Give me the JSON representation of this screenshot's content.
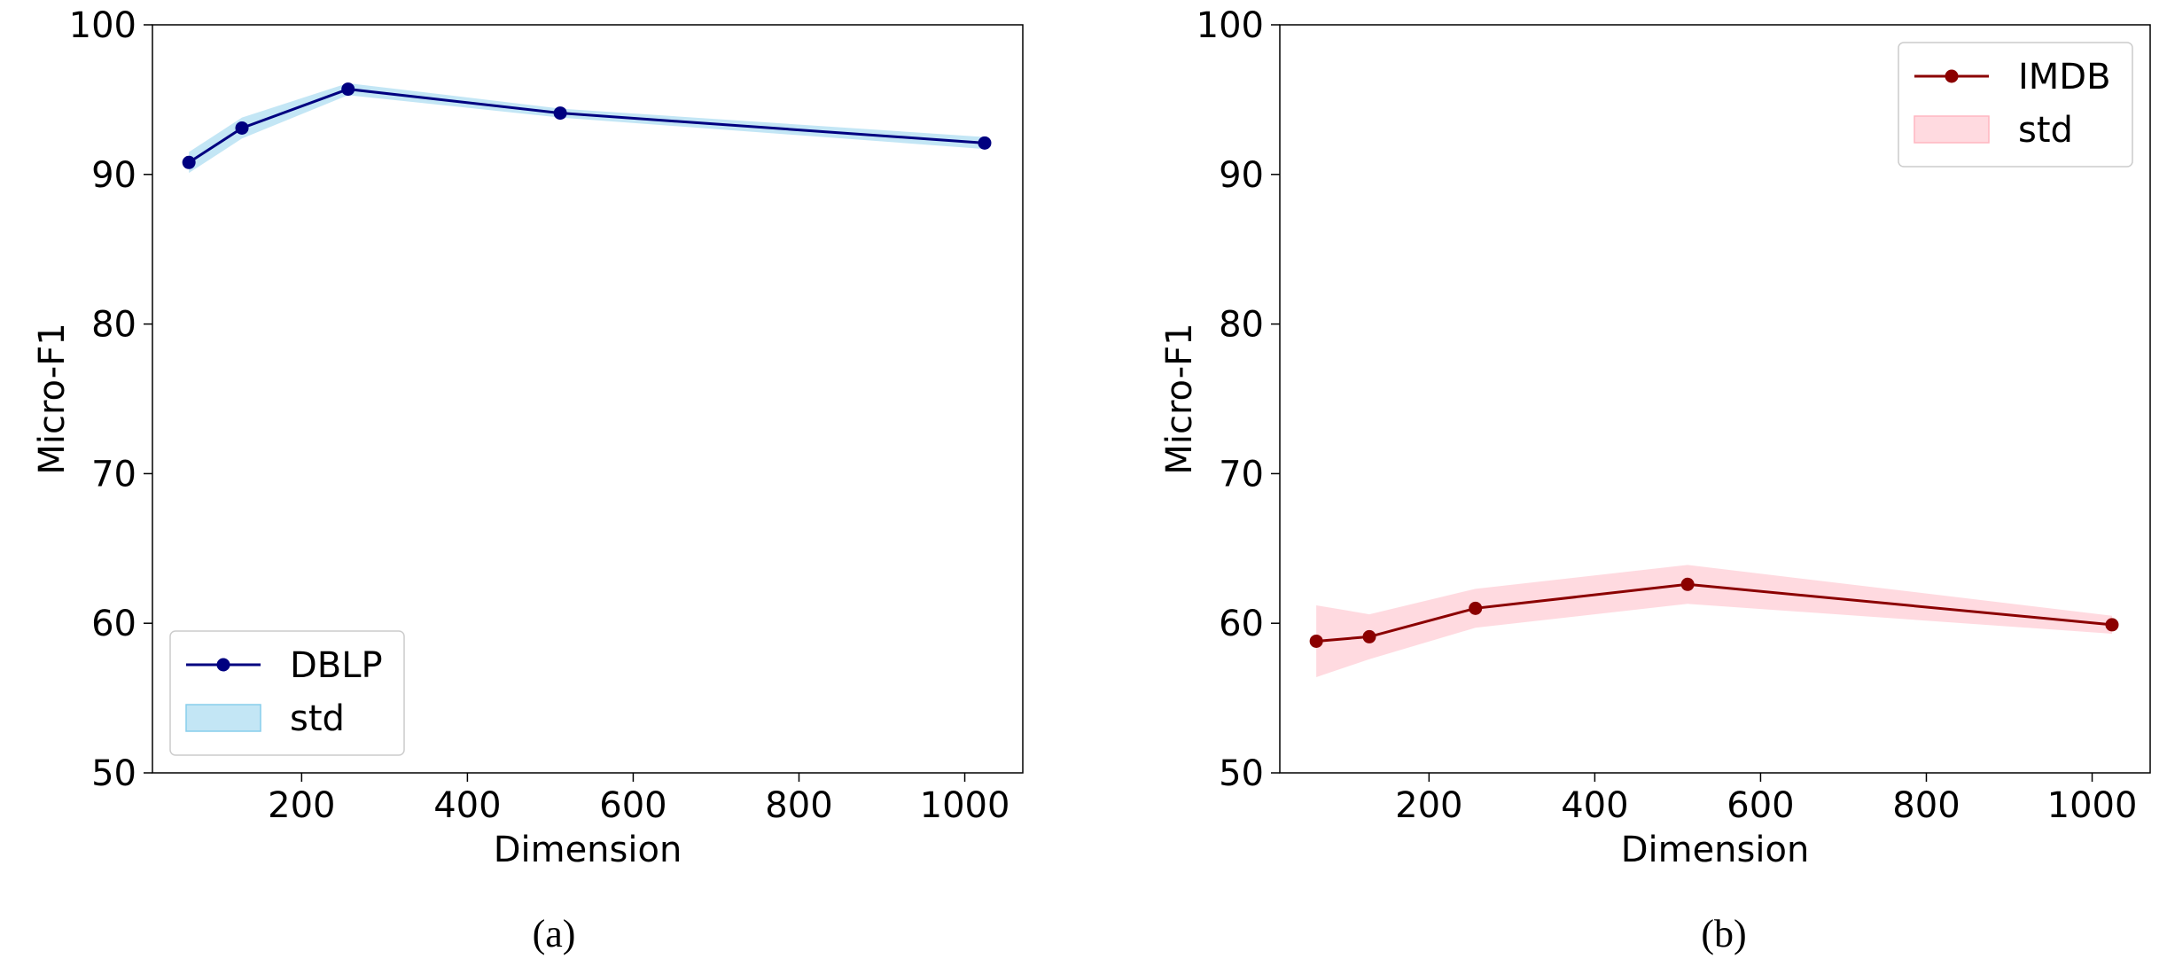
{
  "chart_data": [
    {
      "type": "line",
      "caption": "(a)",
      "xlabel": "Dimension",
      "ylabel": "Micro-F1",
      "xlim": [
        20,
        1070
      ],
      "ylim": [
        50,
        100
      ],
      "xticks": [
        200,
        400,
        600,
        800,
        1000
      ],
      "yticks": [
        50,
        60,
        70,
        80,
        90,
        100
      ],
      "grid": false,
      "legend_position": "lower-left",
      "x": [
        64,
        128,
        256,
        512,
        1024
      ],
      "series": [
        {
          "name": "DBLP",
          "values": [
            90.8,
            93.1,
            95.7,
            94.1,
            92.1
          ],
          "color": "#000080",
          "marker": "circle"
        }
      ],
      "band": {
        "name": "std",
        "lower": [
          90.1,
          92.4,
          95.3,
          93.8,
          91.7
        ],
        "upper": [
          91.5,
          93.8,
          96.1,
          94.4,
          92.5
        ],
        "color": "#87CEEB"
      }
    },
    {
      "type": "line",
      "caption": "(b)",
      "xlabel": "Dimension",
      "ylabel": "Micro-F1",
      "xlim": [
        20,
        1070
      ],
      "ylim": [
        50,
        100
      ],
      "xticks": [
        200,
        400,
        600,
        800,
        1000
      ],
      "yticks": [
        50,
        60,
        70,
        80,
        90,
        100
      ],
      "grid": false,
      "legend_position": "upper-right",
      "x": [
        64,
        128,
        256,
        512,
        1024
      ],
      "series": [
        {
          "name": "IMDB",
          "values": [
            58.8,
            59.1,
            61.0,
            62.6,
            59.9
          ],
          "color": "#8B0000",
          "marker": "circle"
        }
      ],
      "band": {
        "name": "std",
        "lower": [
          56.4,
          57.6,
          59.7,
          61.3,
          59.3
        ],
        "upper": [
          61.2,
          60.6,
          62.3,
          63.9,
          60.5
        ],
        "color": "#FFB6C1"
      }
    }
  ]
}
